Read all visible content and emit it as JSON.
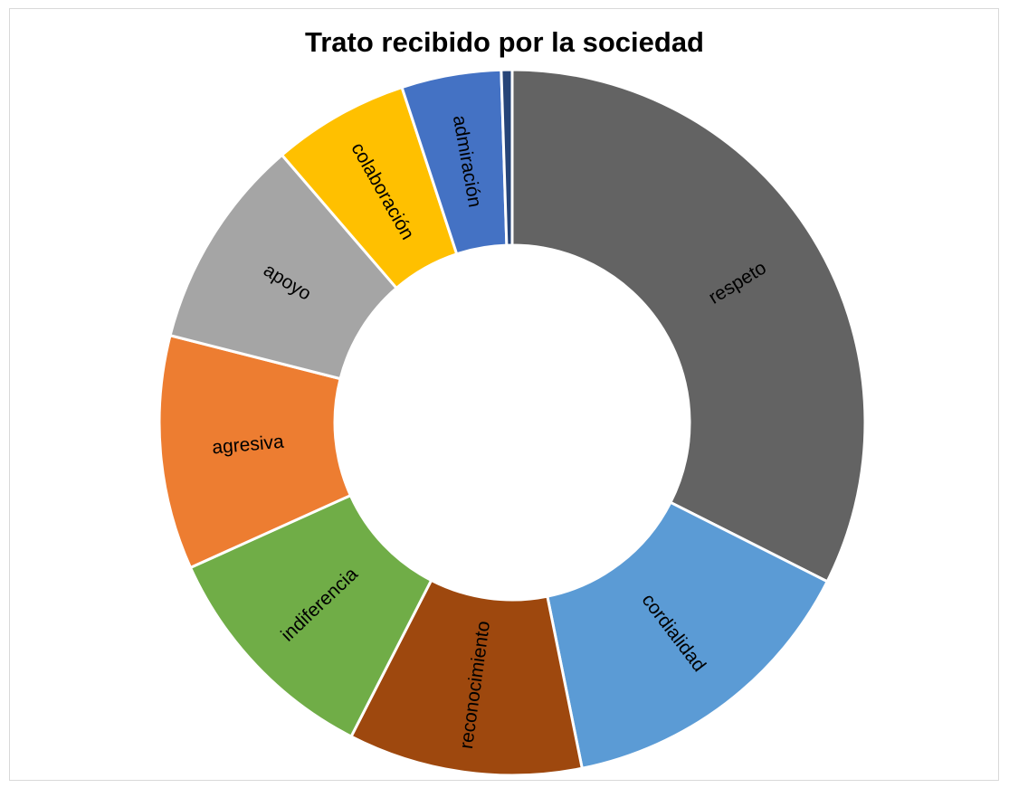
{
  "chart_data": {
    "type": "pie",
    "title": "Trato recibido por la sociedad",
    "categories": [
      "respeto",
      "cordialidad",
      "reconocimiento",
      "indiferencia",
      "agresiva",
      "apoyo",
      "colaboración",
      "admiración",
      ""
    ],
    "values": [
      32.7,
      14.5,
      10.8,
      10.8,
      10.8,
      9.8,
      6.3,
      4.6,
      0.5
    ],
    "colors": [
      "#636363",
      "#5b9bd5",
      "#9e480e",
      "#70ad47",
      "#ed7d31",
      "#a5a5a5",
      "#ffc000",
      "#4472c4",
      "#264478"
    ],
    "hole": "donut",
    "legend": "none",
    "labels": "category names inside slices"
  }
}
